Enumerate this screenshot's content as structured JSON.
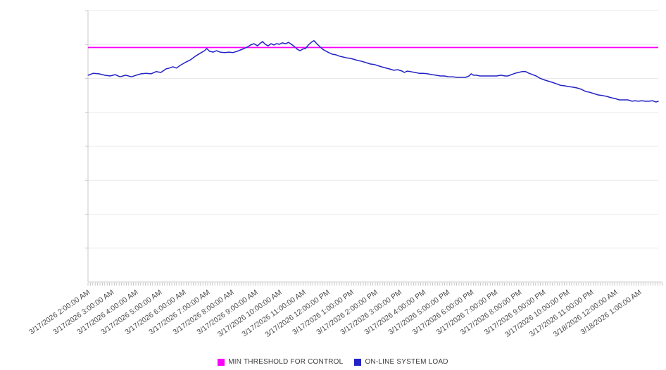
{
  "chart_data": {
    "type": "line",
    "title": "",
    "grid": "horizontal-only",
    "legend_position": "bottom-center",
    "x_axis": {
      "unit": "date-time",
      "range_hours": [
        1.9,
        25.68
      ],
      "tick_hours": [
        2,
        3,
        4,
        5,
        6,
        7,
        8,
        9,
        10,
        11,
        12,
        13,
        14,
        15,
        16,
        17,
        18,
        19,
        20,
        21,
        22,
        23,
        24,
        25
      ],
      "tick_labels": [
        "3/17/2026 2:00:00 AM",
        "3/17/2026 3:00:00 AM",
        "3/17/2026 4:00:00 AM",
        "3/17/2026 5:00:00 AM",
        "3/17/2026 6:00:00 AM",
        "3/17/2026 7:00:00 AM",
        "3/17/2026 8:00:00 AM",
        "3/17/2026 9:00:00 AM",
        "3/17/2026 10:00:00 AM",
        "3/17/2026 11:00:00 AM",
        "3/17/2026 12:00:00 PM",
        "3/17/2026 1:00:00 PM",
        "3/17/2026 2:00:00 PM",
        "3/17/2026 3:00:00 PM",
        "3/17/2026 4:00:00 PM",
        "3/17/2026 5:00:00 PM",
        "3/17/2026 6:00:00 PM",
        "3/17/2026 7:00:00 PM",
        "3/17/2026 8:00:00 PM",
        "3/17/2026 9:00:00 PM",
        "3/17/2026 10:00:00 PM",
        "3/17/2026 11:00:00 PM",
        "3/18/2026 12:00:00 AM",
        "3/18/2026 1:00:00 AM"
      ]
    },
    "y_axis": {
      "range": [
        0,
        100
      ],
      "gridline_step": 12.5,
      "tick_labels_visible": false,
      "scale_note": "no numeric y-axis labels are shown in the chart; values are relative load (percent of plot height)"
    },
    "series": [
      {
        "name": "MIN THRESHOLD FOR CONTROL",
        "color": "#fb00fb",
        "kind": "constant",
        "value": 86.4
      },
      {
        "name": "ON-LINE SYSTEM LOAD",
        "color": "#2222c6",
        "kind": "line",
        "points": [
          [
            1.91,
            76.2
          ],
          [
            2.12,
            76.9
          ],
          [
            2.35,
            76.7
          ],
          [
            2.59,
            76.2
          ],
          [
            2.82,
            75.9
          ],
          [
            3.03,
            76.4
          ],
          [
            3.24,
            75.6
          ],
          [
            3.47,
            76.2
          ],
          [
            3.71,
            75.6
          ],
          [
            3.91,
            76.2
          ],
          [
            4.12,
            76.7
          ],
          [
            4.32,
            76.9
          ],
          [
            4.53,
            76.7
          ],
          [
            4.74,
            77.5
          ],
          [
            4.94,
            77.2
          ],
          [
            5.15,
            78.5
          ],
          [
            5.29,
            78.8
          ],
          [
            5.44,
            79.3
          ],
          [
            5.59,
            78.8
          ],
          [
            5.74,
            79.8
          ],
          [
            5.94,
            80.8
          ],
          [
            6.18,
            81.9
          ],
          [
            6.38,
            83.2
          ],
          [
            6.62,
            84.5
          ],
          [
            6.76,
            85.2
          ],
          [
            6.85,
            86.0
          ],
          [
            6.97,
            85.0
          ],
          [
            7.12,
            84.7
          ],
          [
            7.26,
            85.2
          ],
          [
            7.41,
            84.7
          ],
          [
            7.59,
            84.5
          ],
          [
            7.79,
            84.7
          ],
          [
            7.94,
            84.5
          ],
          [
            8.12,
            85.0
          ],
          [
            8.26,
            85.5
          ],
          [
            8.41,
            86.0
          ],
          [
            8.53,
            86.5
          ],
          [
            8.68,
            87.3
          ],
          [
            8.82,
            87.8
          ],
          [
            8.97,
            87.0
          ],
          [
            9.06,
            87.8
          ],
          [
            9.18,
            88.6
          ],
          [
            9.29,
            87.6
          ],
          [
            9.41,
            87.0
          ],
          [
            9.53,
            87.8
          ],
          [
            9.65,
            87.3
          ],
          [
            9.76,
            87.8
          ],
          [
            9.88,
            87.6
          ],
          [
            10.0,
            88.1
          ],
          [
            10.15,
            87.8
          ],
          [
            10.26,
            88.3
          ],
          [
            10.38,
            87.6
          ],
          [
            10.5,
            86.8
          ],
          [
            10.62,
            85.8
          ],
          [
            10.74,
            85.2
          ],
          [
            10.85,
            85.8
          ],
          [
            10.97,
            86.0
          ],
          [
            11.09,
            87.3
          ],
          [
            11.21,
            88.3
          ],
          [
            11.32,
            88.9
          ],
          [
            11.44,
            87.8
          ],
          [
            11.56,
            86.8
          ],
          [
            11.68,
            85.8
          ],
          [
            11.79,
            85.2
          ],
          [
            11.94,
            84.5
          ],
          [
            12.09,
            83.9
          ],
          [
            12.24,
            83.7
          ],
          [
            12.38,
            83.2
          ],
          [
            12.53,
            82.9
          ],
          [
            12.68,
            82.6
          ],
          [
            12.82,
            82.4
          ],
          [
            12.97,
            82.1
          ],
          [
            13.15,
            81.6
          ],
          [
            13.32,
            81.3
          ],
          [
            13.5,
            80.8
          ],
          [
            13.68,
            80.3
          ],
          [
            13.85,
            80.1
          ],
          [
            14.06,
            79.5
          ],
          [
            14.26,
            79.0
          ],
          [
            14.47,
            78.5
          ],
          [
            14.65,
            78.0
          ],
          [
            14.82,
            78.2
          ],
          [
            15.0,
            77.7
          ],
          [
            15.09,
            77.2
          ],
          [
            15.21,
            77.7
          ],
          [
            15.35,
            77.5
          ],
          [
            15.53,
            77.2
          ],
          [
            15.71,
            76.9
          ],
          [
            15.88,
            76.9
          ],
          [
            16.06,
            76.7
          ],
          [
            16.24,
            76.4
          ],
          [
            16.41,
            76.2
          ],
          [
            16.59,
            75.9
          ],
          [
            16.76,
            75.9
          ],
          [
            16.94,
            75.6
          ],
          [
            17.12,
            75.6
          ],
          [
            17.29,
            75.4
          ],
          [
            17.47,
            75.4
          ],
          [
            17.65,
            75.4
          ],
          [
            17.79,
            75.9
          ],
          [
            17.88,
            76.7
          ],
          [
            17.97,
            76.2
          ],
          [
            18.09,
            76.2
          ],
          [
            18.24,
            75.9
          ],
          [
            18.41,
            75.9
          ],
          [
            18.59,
            75.9
          ],
          [
            18.76,
            75.9
          ],
          [
            18.94,
            75.9
          ],
          [
            19.12,
            76.2
          ],
          [
            19.29,
            75.9
          ],
          [
            19.41,
            75.9
          ],
          [
            19.56,
            76.4
          ],
          [
            19.71,
            76.9
          ],
          [
            19.85,
            77.2
          ],
          [
            20.0,
            77.5
          ],
          [
            20.15,
            77.5
          ],
          [
            20.29,
            76.9
          ],
          [
            20.44,
            76.4
          ],
          [
            20.59,
            75.9
          ],
          [
            20.74,
            75.1
          ],
          [
            20.88,
            74.6
          ],
          [
            21.06,
            74.1
          ],
          [
            21.24,
            73.6
          ],
          [
            21.41,
            73.1
          ],
          [
            21.59,
            72.5
          ],
          [
            21.76,
            72.3
          ],
          [
            21.94,
            72.0
          ],
          [
            22.12,
            71.8
          ],
          [
            22.29,
            71.5
          ],
          [
            22.47,
            71.0
          ],
          [
            22.65,
            70.2
          ],
          [
            22.82,
            69.9
          ],
          [
            23.0,
            69.4
          ],
          [
            23.18,
            68.9
          ],
          [
            23.35,
            68.7
          ],
          [
            23.53,
            68.4
          ],
          [
            23.71,
            67.9
          ],
          [
            23.88,
            67.6
          ],
          [
            24.06,
            67.1
          ],
          [
            24.24,
            67.1
          ],
          [
            24.41,
            67.1
          ],
          [
            24.59,
            66.6
          ],
          [
            24.71,
            66.8
          ],
          [
            24.85,
            66.6
          ],
          [
            25.0,
            66.8
          ],
          [
            25.15,
            66.6
          ],
          [
            25.29,
            66.6
          ],
          [
            25.44,
            66.8
          ],
          [
            25.59,
            66.3
          ],
          [
            25.68,
            66.6
          ]
        ]
      }
    ],
    "style": {
      "gridline_color": "#eaeaea",
      "axis_color": "#c9c9c9",
      "tick_color": "#b0b0b0",
      "tick_label_color": "#4d4d4d",
      "background": "#ffffff"
    }
  }
}
